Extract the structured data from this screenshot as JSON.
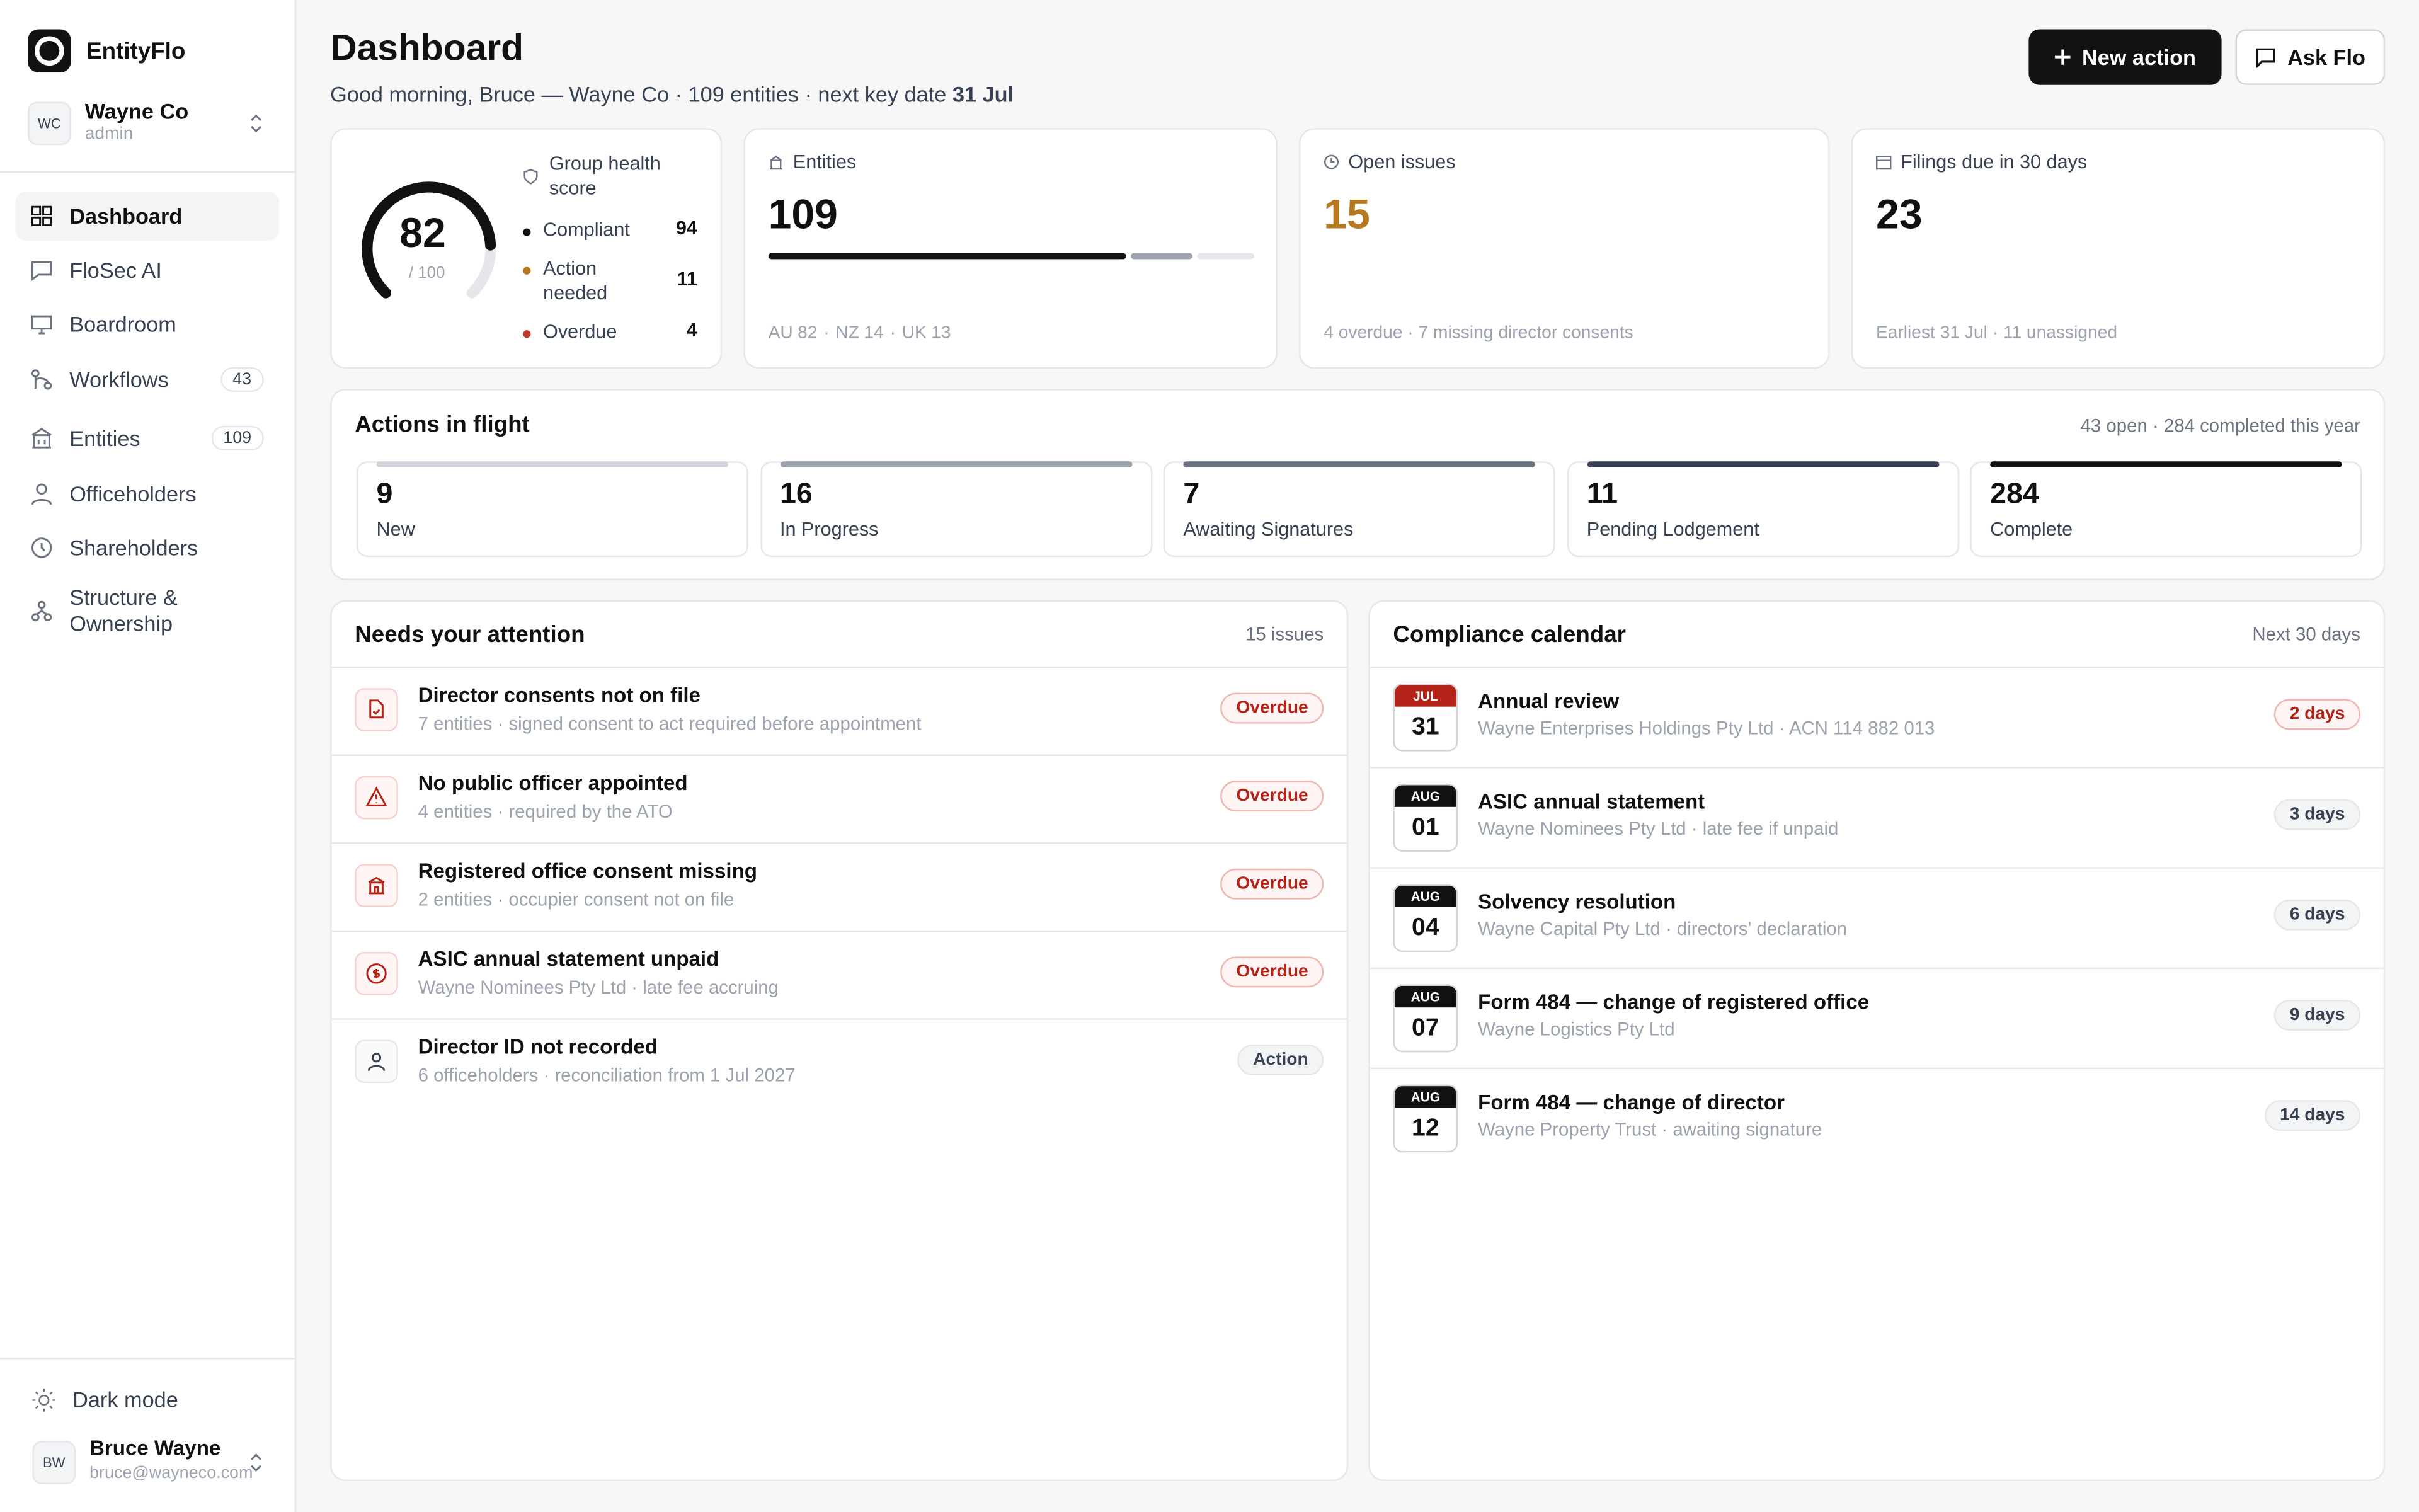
{
  "sidebar": {
    "brand": "EntityFlo",
    "org": {
      "initials": "WC",
      "name": "Wayne Co",
      "role": "admin"
    },
    "nav": [
      {
        "label": "Dashboard"
      },
      {
        "label": "FloSec AI"
      },
      {
        "label": "Boardroom"
      },
      {
        "label": "Workflows",
        "badge": 43
      },
      {
        "label": "Entities",
        "badge": 109
      },
      {
        "label": "Officeholders"
      },
      {
        "label": "Shareholders"
      },
      {
        "label": "Structure & Ownership"
      }
    ],
    "dark_mode": "Dark mode",
    "user": {
      "initials": "BW",
      "name": "Bruce Wayne",
      "email": "bruce@wayneco.com"
    }
  },
  "header": {
    "title": "Dashboard",
    "greeting": "Good morning, Bruce — Wayne Co · 109 entities · next key date",
    "key_date": "31 Jul",
    "buttons": [
      "New action",
      "Ask Flo"
    ]
  },
  "stats": {
    "health": {
      "title": "Group health score",
      "score": 82,
      "max": 100,
      "legend": [
        {
          "label": "Compliant",
          "value": 94,
          "color": "#111111"
        },
        {
          "label": "Action needed",
          "value": 11,
          "color": "#b7791f"
        },
        {
          "label": "Overdue",
          "value": 4,
          "color": "#c0392b"
        }
      ]
    },
    "entities": {
      "title": "Entities",
      "value": 109,
      "breakdown": [
        {
          "label": "AU",
          "value": 82,
          "color": "#111111"
        },
        {
          "label": "NZ",
          "value": 14,
          "color": "#9ca3af"
        },
        {
          "label": "UK",
          "value": 13,
          "color": "#e5e7eb"
        }
      ]
    },
    "open_issues": {
      "title": "Open issues",
      "value": 15,
      "note": "4 overdue · 7 missing director consents"
    },
    "filings": {
      "title": "Filings due in 30 days",
      "value": 23,
      "note": "Earliest 31 Jul · 11 unassigned"
    }
  },
  "actions": {
    "title": "Actions in flight",
    "summary": "43 open · 284 completed this year",
    "stages": [
      {
        "count": 9,
        "label": "New",
        "color": "#d1d5db"
      },
      {
        "count": 16,
        "label": "In Progress",
        "color": "#9ca3af"
      },
      {
        "count": 7,
        "label": "Awaiting Signatures",
        "color": "#6b7280"
      },
      {
        "count": 11,
        "label": "Pending Lodgement",
        "color": "#374151"
      },
      {
        "count": 284,
        "label": "Complete",
        "color": "#111111"
      }
    ]
  },
  "attention": {
    "title": "Needs your attention",
    "summary": "15 issues",
    "items": [
      {
        "title": "Director consents not on file",
        "detail": "7 entities · signed consent to act required before appointment",
        "status": "Overdue",
        "tone": "red"
      },
      {
        "title": "No public officer appointed",
        "detail": "4 entities · required by the ATO",
        "status": "Overdue",
        "tone": "red"
      },
      {
        "title": "Registered office consent missing",
        "detail": "2 entities · occupier consent not on file",
        "status": "Overdue",
        "tone": "red"
      },
      {
        "title": "ASIC annual statement unpaid",
        "detail": "Wayne Nominees Pty Ltd · late fee accruing",
        "status": "Overdue",
        "tone": "red"
      },
      {
        "title": "Director ID not recorded",
        "detail": "6 officeholders · reconciliation from 1 Jul 2027",
        "status": "Action",
        "tone": "gray"
      }
    ]
  },
  "calendar": {
    "title": "Compliance calendar",
    "summary": "Next 30 days",
    "items": [
      {
        "month": "JUL",
        "day": "31",
        "title": "Annual review",
        "detail": "Wayne Enterprises Holdings Pty Ltd · ACN 114 882 013",
        "due": "2 days",
        "tone": "red"
      },
      {
        "month": "AUG",
        "day": "01",
        "title": "ASIC annual statement",
        "detail": "Wayne Nominees Pty Ltd · late fee if unpaid",
        "due": "3 days",
        "tone": "gray"
      },
      {
        "month": "AUG",
        "day": "04",
        "title": "Solvency resolution",
        "detail": "Wayne Capital Pty Ltd · directors' declaration",
        "due": "6 days",
        "tone": "gray"
      },
      {
        "month": "AUG",
        "day": "07",
        "title": "Form 484 — change of registered office",
        "detail": "Wayne Logistics Pty Ltd",
        "due": "9 days",
        "tone": "gray"
      },
      {
        "month": "AUG",
        "day": "12",
        "title": "Form 484 — change of director",
        "detail": "Wayne Property Trust · awaiting signature",
        "due": "14 days",
        "tone": "gray"
      }
    ]
  }
}
